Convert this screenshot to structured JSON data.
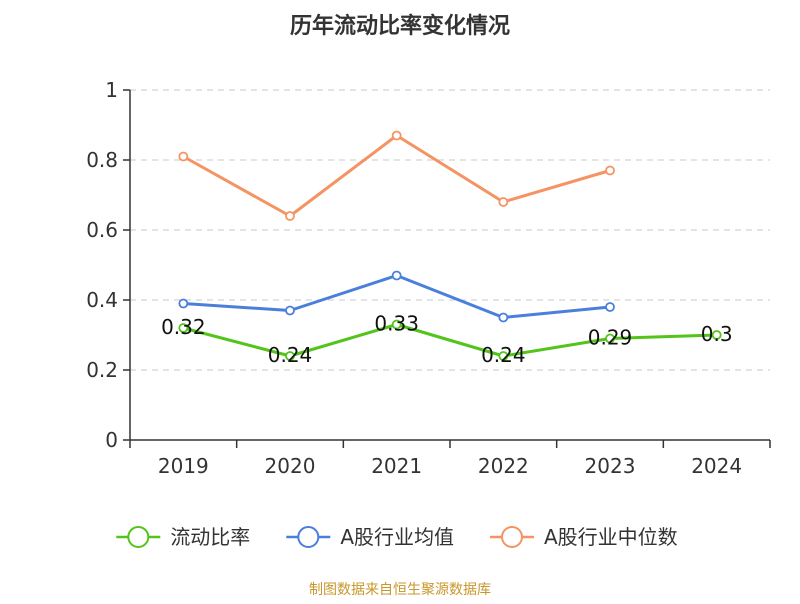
{
  "chart_data": {
    "type": "line",
    "title": "历年流动比率变化情况",
    "categories": [
      "2019",
      "2020",
      "2021",
      "2022",
      "2023",
      "2024"
    ],
    "ylim": [
      0,
      1
    ],
    "yticks": [
      0,
      0.2,
      0.4,
      0.6,
      0.8,
      1
    ],
    "ytick_labels": [
      "0",
      "0.2",
      "0.4",
      "0.6",
      "0.8",
      "1"
    ],
    "grid": true,
    "legend_position": "bottom",
    "series": [
      {
        "name": "流动比率",
        "color": "#52c41a",
        "values": [
          0.32,
          0.24,
          0.33,
          0.24,
          0.29,
          0.3
        ],
        "data_labels": [
          "0.32",
          "0.24",
          "0.33",
          "0.24",
          "0.29",
          "0.3"
        ]
      },
      {
        "name": "A股行业均值",
        "color": "#4a7fdc",
        "values": [
          0.39,
          0.37,
          0.47,
          0.35,
          0.38,
          null
        ]
      },
      {
        "name": "A股行业中位数",
        "color": "#f59362",
        "values": [
          0.81,
          0.64,
          0.87,
          0.68,
          0.77,
          null
        ]
      }
    ]
  },
  "source_text": "制图数据来自恒生聚源数据库",
  "colors": {
    "axis": "#333333",
    "grid": "#c8c8c8",
    "text": "#333333",
    "source": "#c8962a"
  }
}
